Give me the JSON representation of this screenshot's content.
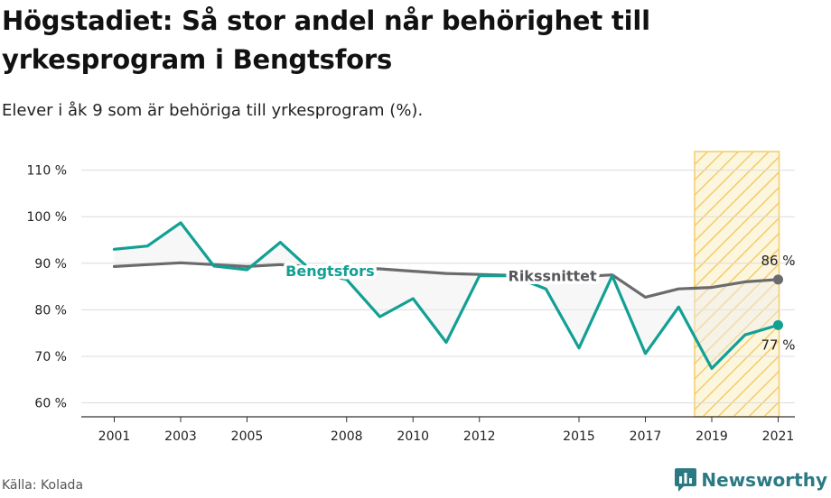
{
  "header": {
    "title": "Högstadiet: Så stor andel når behörighet till yrkesprogram i Bengtsfors",
    "subtitle": "Elever i åk 9 som är behöriga till yrkesprogram (%)."
  },
  "footer": {
    "source": "Källa: Kolada",
    "brand": "Newsworthy"
  },
  "chart_data": {
    "type": "line",
    "x": [
      2001,
      2002,
      2003,
      2004,
      2005,
      2006,
      2007,
      2008,
      2009,
      2010,
      2011,
      2012,
      2013,
      2014,
      2015,
      2016,
      2017,
      2018,
      2019,
      2020,
      2021
    ],
    "x_ticks": [
      2001,
      2003,
      2005,
      2008,
      2010,
      2012,
      2015,
      2017,
      2019,
      2021
    ],
    "ylim": [
      57,
      114
    ],
    "y_ticks": [
      60,
      70,
      80,
      90,
      100,
      110
    ],
    "y_tick_suffix": " %",
    "highlight_period": [
      2019,
      2021
    ],
    "series": [
      {
        "name": "Bengtsfors",
        "color": "#12a094",
        "values": [
          93,
          93.7,
          98.7,
          89.4,
          88.6,
          94.5,
          88,
          86.5,
          78.5,
          82.4,
          73,
          87.3,
          87.3,
          84.5,
          71.8,
          87.3,
          70.6,
          80.6,
          67.4,
          74.6,
          76.7
        ]
      },
      {
        "name": "Rikssnittet",
        "color": "#6b6b6e",
        "values": [
          89.3,
          89.7,
          90.1,
          89.7,
          89.3,
          89.7,
          89.2,
          88.9,
          88.8,
          88.3,
          87.8,
          87.6,
          87.4,
          87.2,
          87.1,
          87.5,
          82.7,
          84.5,
          84.8,
          86,
          86.5
        ]
      }
    ],
    "end_labels": {
      "Rikssnittet": "86 %",
      "Bengtsfors": "77 %"
    },
    "grid": true,
    "legend": "inline labels"
  }
}
